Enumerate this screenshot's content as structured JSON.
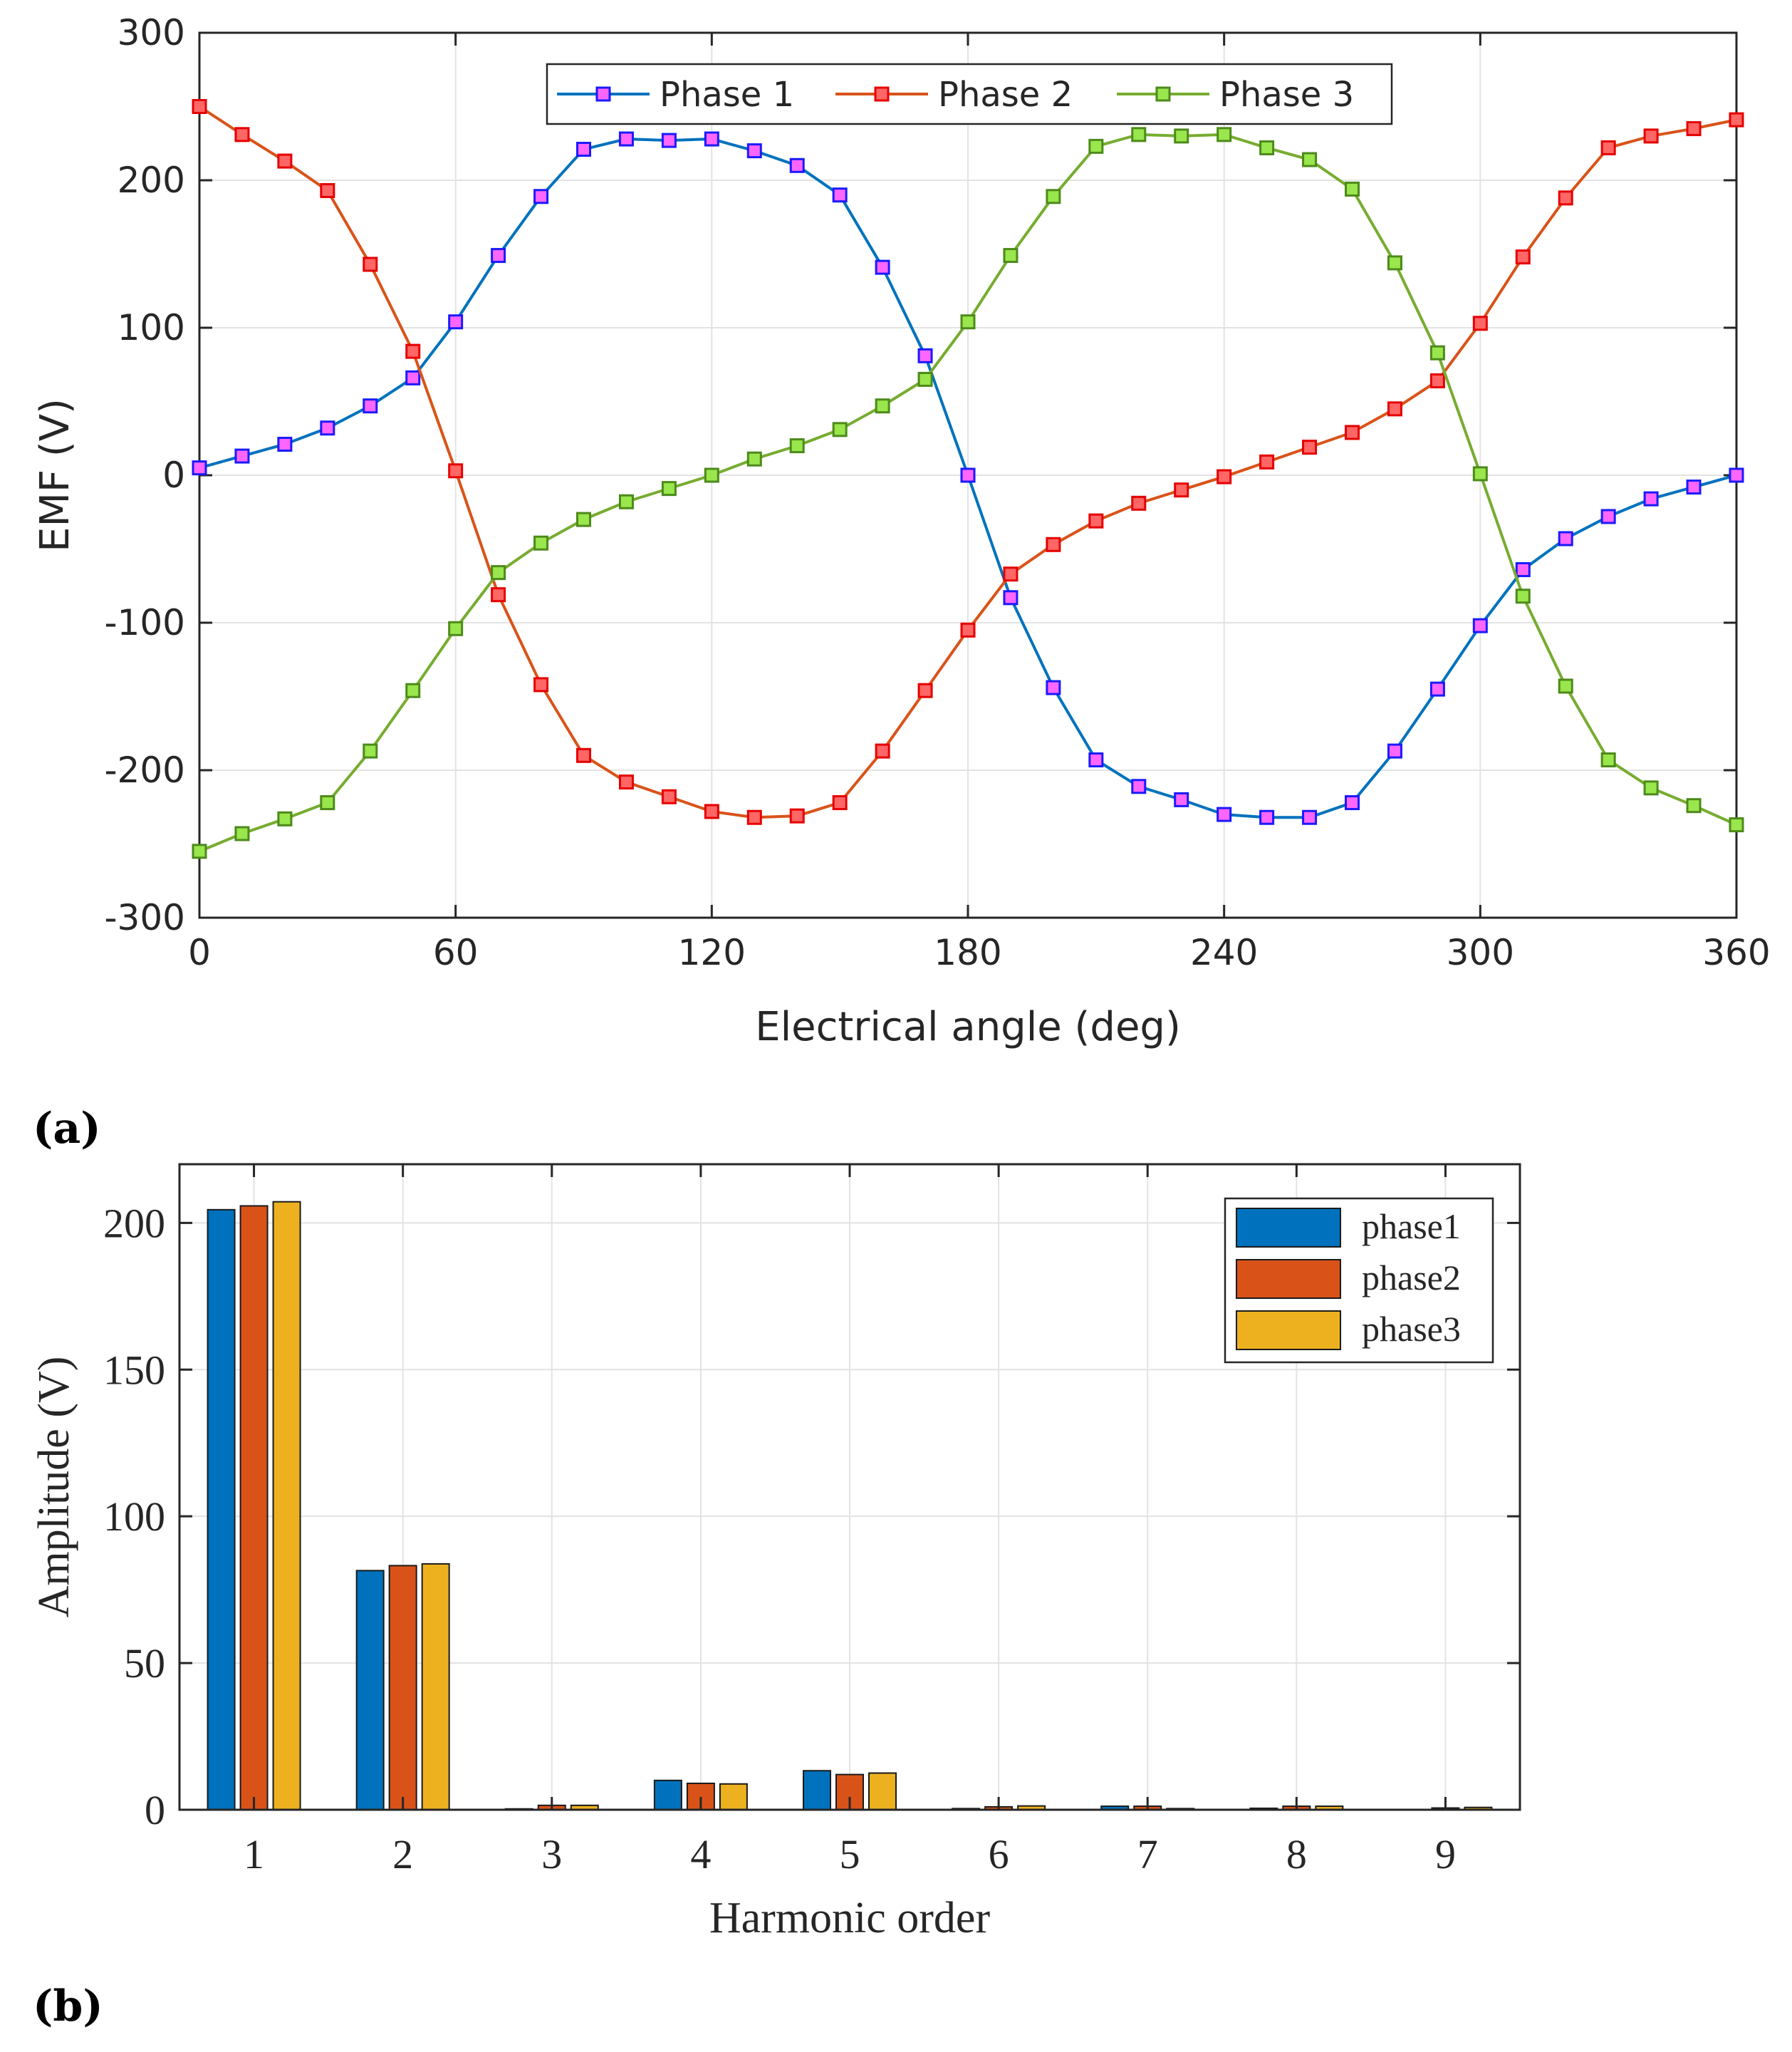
{
  "panels": {
    "a_label": "(a)",
    "b_label": "(b)"
  },
  "chart_data": [
    {
      "type": "line",
      "xlabel": "Electrical angle (deg)",
      "ylabel": "EMF (V)",
      "xlim": [
        0,
        360
      ],
      "ylim": [
        -300,
        300
      ],
      "xticks": [
        "0",
        "60",
        "120",
        "180",
        "240",
        "300",
        "360"
      ],
      "yticks": [
        "-300",
        "-200",
        "-100",
        "0",
        "100",
        "200",
        "300"
      ],
      "grid": true,
      "legend_position": "top-center",
      "x": [
        0,
        10,
        20,
        30,
        40,
        50,
        60,
        70,
        80,
        90,
        100,
        110,
        120,
        130,
        140,
        150,
        160,
        170,
        180,
        190,
        200,
        210,
        220,
        230,
        240,
        250,
        260,
        270,
        280,
        290,
        300,
        310,
        320,
        330,
        340,
        350,
        360
      ],
      "series": [
        {
          "name": "Phase 1",
          "color": "#0072BD",
          "marker_fill": "#ff66ff",
          "marker_edge": "#1a1aff",
          "values": [
            5,
            13,
            21,
            32,
            47,
            66,
            104,
            149,
            189,
            221,
            228,
            227,
            228,
            220,
            210,
            190,
            141,
            81,
            0,
            -83,
            -144,
            -193,
            -211,
            -220,
            -230,
            -232,
            -232,
            -222,
            -187,
            -145,
            -102,
            -64,
            -43,
            -28,
            -16,
            -8,
            0
          ]
        },
        {
          "name": "Phase 2",
          "color": "#D95319",
          "marker_fill": "#ff6666",
          "marker_edge": "#e60000",
          "values": [
            250,
            231,
            213,
            193,
            143,
            84,
            3,
            -81,
            -142,
            -190,
            -208,
            -218,
            -228,
            -232,
            -231,
            -222,
            -187,
            -146,
            -105,
            -67,
            -47,
            -31,
            -19,
            -10,
            -1,
            9,
            19,
            29,
            45,
            64,
            103,
            148,
            188,
            222,
            230,
            235,
            241
          ]
        },
        {
          "name": "Phase 3",
          "color": "#77AC30",
          "marker_fill": "#99e64d",
          "marker_edge": "#4d8a1a",
          "values": [
            -255,
            -243,
            -233,
            -222,
            -187,
            -146,
            -104,
            -66,
            -46,
            -30,
            -18,
            -9,
            0,
            11,
            20,
            31,
            47,
            65,
            104,
            149,
            189,
            223,
            231,
            230,
            231,
            222,
            214,
            194,
            144,
            83,
            1,
            -82,
            -143,
            -193,
            -212,
            -224,
            -237
          ]
        }
      ]
    },
    {
      "type": "bar",
      "xlabel": "Harmonic order",
      "ylabel": "Amplitude (V)",
      "ylim": [
        0,
        220
      ],
      "yticks": [
        "0",
        "50",
        "100",
        "150",
        "200"
      ],
      "categories": [
        "1",
        "2",
        "3",
        "4",
        "5",
        "6",
        "7",
        "8",
        "9"
      ],
      "grid": true,
      "legend_position": "top-right",
      "series": [
        {
          "name": "phase1",
          "color": "#0072BD",
          "values": [
            204.5,
            81.5,
            0.3,
            10.0,
            13.3,
            0.4,
            1.2,
            0.5,
            0.0
          ]
        },
        {
          "name": "phase2",
          "color": "#D95319",
          "values": [
            205.8,
            83.2,
            1.5,
            9.0,
            12.0,
            1.0,
            1.2,
            1.2,
            0.6
          ]
        },
        {
          "name": "phase3",
          "color": "#EDB120",
          "values": [
            207.2,
            83.8,
            1.5,
            8.8,
            12.5,
            1.3,
            0.4,
            1.2,
            0.8
          ]
        }
      ]
    }
  ]
}
